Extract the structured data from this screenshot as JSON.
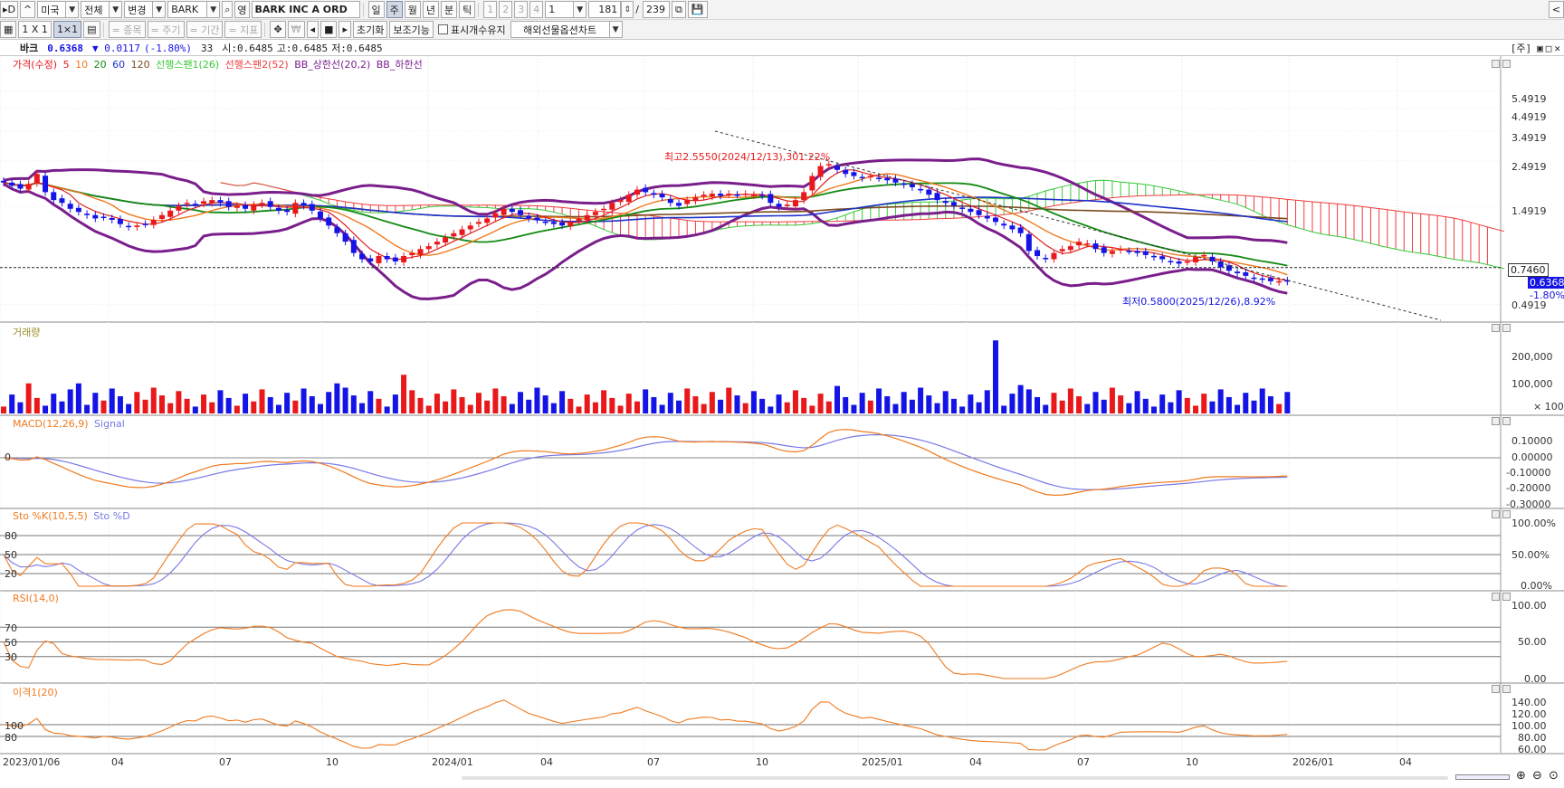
{
  "toolbar1": {
    "market": "미국",
    "filter": "전체",
    "change": "변경",
    "symbol": "BARK",
    "search_label": "영",
    "name": "BARK INC A ORD",
    "periods": [
      "일",
      "주",
      "월",
      "년",
      "분",
      "틱"
    ],
    "active_period": "주",
    "subperiods": [
      "1",
      "2",
      "3",
      "4"
    ],
    "sub_value": "1",
    "count": "181",
    "total": "239"
  },
  "toolbar2": {
    "layout": "1 X 1",
    "layout2": "1×1",
    "tools": [
      "= 종목",
      "= 주기",
      "= 기간",
      "= 지표"
    ],
    "reset": "초기화",
    "aux": "보조기능",
    "keep_count": "표시개수유지",
    "chart_type": "해외선물옵션차트"
  },
  "info": {
    "name": "바크",
    "price": "0.6368",
    "change": "▼ 0.0117",
    "pct": "(-1.80%)",
    "vol": "33",
    "open": "시:0.6485",
    "high": "고:0.6485",
    "low": "저:0.6485",
    "unit": "[주]"
  },
  "legends": {
    "price": [
      "가격(수정)",
      "5",
      "10",
      "20",
      "60",
      "120",
      "선행스팬1(26)",
      "선행스팬2(52)",
      "BB_상한선(20,2)",
      "BB_하한선"
    ],
    "volume": "거래량",
    "macd": [
      "MACD(12,26,9)",
      "Signal"
    ],
    "stoch": [
      "Sto %K(10,5,5)",
      "Sto %D"
    ],
    "rsi": "RSI(14,0)",
    "disparity": "이격1(20)"
  },
  "annotations": {
    "high": "최고2.5550(2024/12/13),301.22%",
    "low": "최저0.5800(2025/12/26),8.92%",
    "ref_price": "0.7460",
    "last_price": "0.6368",
    "last_pct": "-1.80%"
  },
  "axes": {
    "price": [
      "5.4919",
      "4.4919",
      "3.4919",
      "2.4919",
      "1.4919",
      "0.4919"
    ],
    "volume": [
      "200,000",
      "100,000",
      "× 100"
    ],
    "macd": [
      "0.10000",
      "0.00000",
      "-0.10000",
      "-0.20000",
      "-0.30000"
    ],
    "macd_left": "0",
    "stoch": [
      "100.00%",
      "50.00%",
      "0.00%"
    ],
    "stoch_left": [
      "80",
      "50",
      "20"
    ],
    "rsi": [
      "100.00",
      "50.00",
      "0.00"
    ],
    "rsi_left": [
      "70",
      "50",
      "30"
    ],
    "disparity": [
      "140.00",
      "120.00",
      "100.00",
      "80.00",
      "60.00"
    ],
    "disparity_left": [
      "100",
      "80"
    ],
    "dates": [
      "2023/01/06",
      "04",
      "07",
      "10",
      "2024/01",
      "04",
      "07",
      "10",
      "2025/01",
      "04",
      "07",
      "10",
      "2026/01",
      "04"
    ]
  },
  "colors": {
    "up": "#e8181b",
    "down": "#1414e6",
    "ma5": "#e01e1e",
    "ma10": "#f07a1e",
    "ma20": "#128a12",
    "ma60": "#1e32c8",
    "ma120": "#7a4a1e",
    "span1": "#38c838",
    "span2": "#f03c3c",
    "bb": "#7a1e8c",
    "macd": "#f07a1e",
    "signal": "#7878e6"
  },
  "chart_data": {
    "type": "candlestick-weekly",
    "symbol": "BARK",
    "weeks": 155,
    "close": [
      1.95,
      1.88,
      1.82,
      1.92,
      2.15,
      1.75,
      1.6,
      1.55,
      1.45,
      1.4,
      1.35,
      1.3,
      1.32,
      1.28,
      1.22,
      1.18,
      1.2,
      1.22,
      1.28,
      1.35,
      1.42,
      1.5,
      1.55,
      1.52,
      1.58,
      1.6,
      1.55,
      1.48,
      1.5,
      1.45,
      1.52,
      1.55,
      1.48,
      1.42,
      1.4,
      1.55,
      1.5,
      1.42,
      1.3,
      1.2,
      1.1,
      1.0,
      0.88,
      0.82,
      0.8,
      0.85,
      0.82,
      0.8,
      0.85,
      0.88,
      0.92,
      0.95,
      1.0,
      1.05,
      1.1,
      1.15,
      1.2,
      1.25,
      1.3,
      1.38,
      1.45,
      1.4,
      1.35,
      1.3,
      1.28,
      1.25,
      1.22,
      1.2,
      1.25,
      1.3,
      1.35,
      1.4,
      1.45,
      1.55,
      1.6,
      1.7,
      1.8,
      1.75,
      1.7,
      1.65,
      1.55,
      1.5,
      1.6,
      1.65,
      1.7,
      1.72,
      1.68,
      1.72,
      1.7,
      1.72,
      1.7,
      1.68,
      1.55,
      1.48,
      1.52,
      1.6,
      1.75,
      2.1,
      2.35,
      2.4,
      2.25,
      2.15,
      2.1,
      2.05,
      2.1,
      2.05,
      2.0,
      1.95,
      1.9,
      1.85,
      1.8,
      1.7,
      1.6,
      1.55,
      1.5,
      1.45,
      1.4,
      1.35,
      1.3,
      1.25,
      1.2,
      1.15,
      1.1,
      0.9,
      0.85,
      0.82,
      0.88,
      0.92,
      0.95,
      1.0,
      0.98,
      0.92,
      0.88,
      0.9,
      0.92,
      0.9,
      0.88,
      0.86,
      0.84,
      0.82,
      0.8,
      0.78,
      0.8,
      0.84,
      0.86,
      0.8,
      0.75,
      0.72,
      0.7,
      0.68,
      0.66,
      0.65,
      0.64,
      0.64,
      0.6368
    ],
    "ref_price": 0.746,
    "high_mark": {
      "price": 2.555,
      "date": "2024/12/13"
    },
    "low_mark": {
      "price": 0.58,
      "date": "2025/12/26"
    }
  }
}
